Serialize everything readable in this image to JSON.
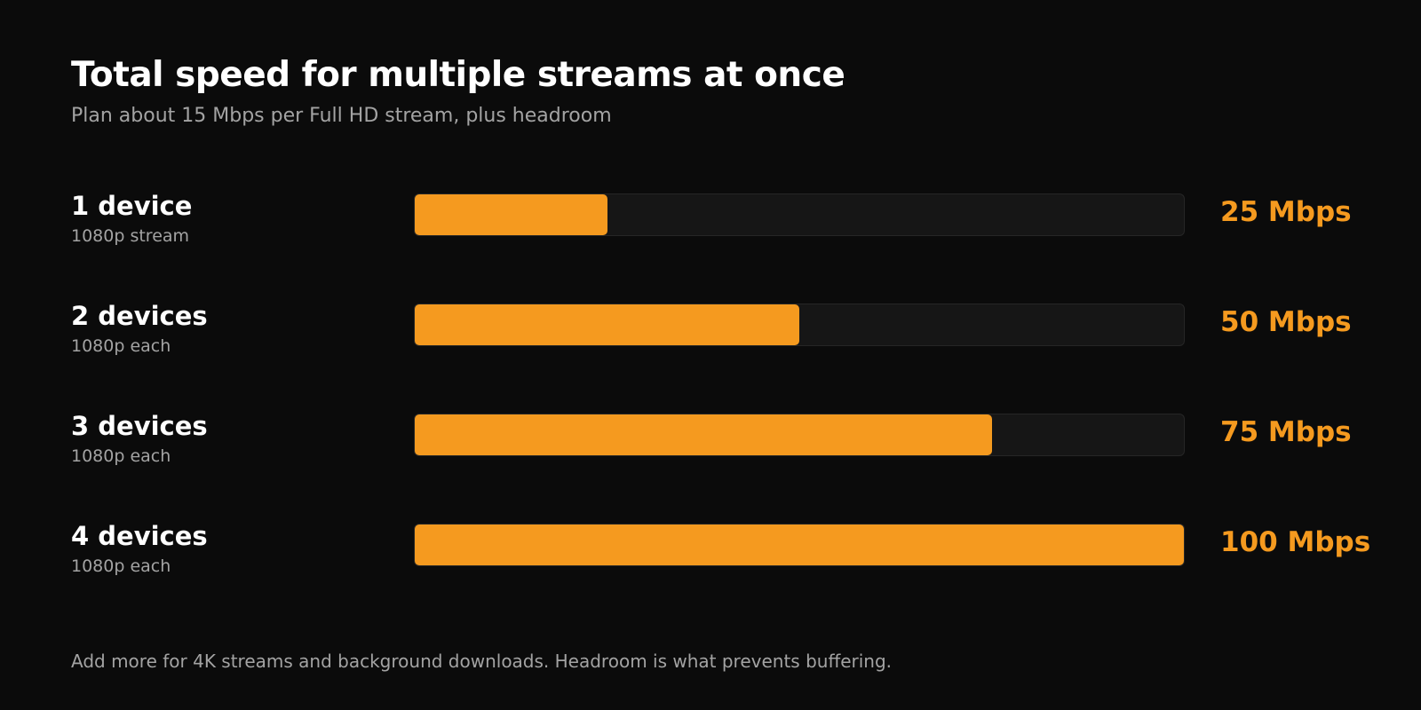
{
  "title": "Total speed for multiple streams at once",
  "subtitle": "Plan about 15 Mbps per Full HD stream, plus headroom",
  "footnote": "Add more for 4K streams and background downloads. Headroom is what prevents buffering.",
  "colors": {
    "background": "#0b0b0b",
    "accent": "#f59a1f",
    "track": "#161616",
    "muted_text": "#a3a3a3"
  },
  "chart_data": {
    "type": "bar",
    "orientation": "horizontal",
    "title": "Total speed for multiple streams at once",
    "subtitle": "Plan about 15 Mbps per Full HD stream, plus headroom",
    "categories": [
      "1 device",
      "2 devices",
      "3 devices",
      "4 devices"
    ],
    "category_notes": [
      "1080p stream",
      "1080p each",
      "1080p each",
      "1080p each"
    ],
    "values": [
      25,
      50,
      75,
      100
    ],
    "value_labels": [
      "25 Mbps",
      "50 Mbps",
      "75 Mbps",
      "100 Mbps"
    ],
    "unit": "Mbps",
    "xlim": [
      0,
      100
    ],
    "grid": false,
    "legend": "none"
  }
}
